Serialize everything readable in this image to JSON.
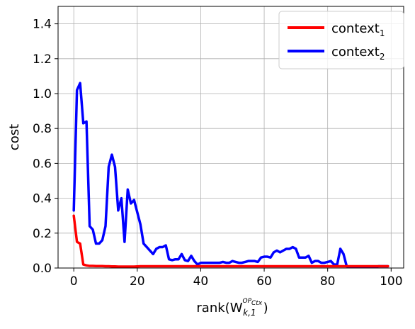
{
  "chart_data": {
    "type": "line",
    "title": "",
    "xlabel": {
      "base": "rank(W",
      "sup_main": "OP",
      "sup_sub": "Ctx",
      "sub": "k,1",
      "close": ")"
    },
    "ylabel": "cost",
    "xlim": [
      -4.95,
      103.95
    ],
    "ylim": [
      0,
      1.5
    ],
    "x_ticks": [
      0,
      20,
      40,
      60,
      80,
      100
    ],
    "x_tick_labels": [
      "0",
      "20",
      "40",
      "60",
      "80",
      "100"
    ],
    "y_ticks": [
      0,
      0.2,
      0.4,
      0.6,
      0.8,
      1.0,
      1.2,
      1.4
    ],
    "y_tick_labels": [
      "0.0",
      "0.2",
      "0.4",
      "0.6",
      "0.8",
      "1.0",
      "1.2",
      "1.4"
    ],
    "grid": true,
    "legend_position": "top-right",
    "series": [
      {
        "name": "context",
        "name_sub": "1",
        "color": "#ff0000",
        "x": [
          0,
          1,
          2,
          3,
          4,
          5,
          6,
          7,
          8,
          9,
          10,
          11,
          12,
          13,
          14,
          15,
          16,
          17,
          18,
          19,
          20,
          21,
          22,
          23,
          24,
          25,
          26,
          27,
          28,
          29,
          30,
          31,
          32,
          33,
          34,
          35,
          36,
          37,
          38,
          39,
          40,
          41,
          42,
          43,
          44,
          45,
          46,
          47,
          48,
          49,
          50,
          51,
          52,
          53,
          54,
          55,
          56,
          57,
          58,
          59,
          60,
          61,
          62,
          63,
          64,
          65,
          66,
          67,
          68,
          69,
          70,
          71,
          72,
          73,
          74,
          75,
          76,
          77,
          78,
          79,
          80,
          81,
          82,
          83,
          84,
          85,
          86,
          87,
          88,
          89,
          90,
          91,
          92,
          93,
          94,
          95,
          96,
          97,
          98,
          99
        ],
        "values": [
          0.3,
          0.15,
          0.14,
          0.02,
          0.015,
          0.012,
          0.012,
          0.011,
          0.011,
          0.011,
          0.01,
          0.01,
          0.009,
          0.009,
          0.008,
          0.008,
          0.008,
          0.008,
          0.008,
          0.008,
          0.009,
          0.01,
          0.01,
          0.01,
          0.01,
          0.01,
          0.01,
          0.01,
          0.01,
          0.01,
          0.01,
          0.01,
          0.01,
          0.01,
          0.01,
          0.01,
          0.01,
          0.01,
          0.01,
          0.01,
          0.01,
          0.01,
          0.01,
          0.01,
          0.01,
          0.01,
          0.01,
          0.01,
          0.01,
          0.01,
          0.01,
          0.01,
          0.01,
          0.01,
          0.01,
          0.01,
          0.01,
          0.01,
          0.01,
          0.01,
          0.01,
          0.01,
          0.01,
          0.01,
          0.01,
          0.01,
          0.01,
          0.01,
          0.01,
          0.01,
          0.01,
          0.01,
          0.01,
          0.01,
          0.01,
          0.01,
          0.01,
          0.01,
          0.01,
          0.01,
          0.01,
          0.01,
          0.01,
          0.01,
          0.01,
          0.01,
          0.01,
          0.01,
          0.01,
          0.01,
          0.01,
          0.01,
          0.01,
          0.01,
          0.01,
          0.01,
          0.01,
          0.01,
          0.01,
          0.01
        ]
      },
      {
        "name": "context",
        "name_sub": "2",
        "color": "#0000ff",
        "x": [
          0,
          1,
          2,
          3,
          4,
          5,
          6,
          7,
          8,
          9,
          10,
          11,
          12,
          13,
          14,
          15,
          16,
          17,
          18,
          19,
          20,
          21,
          22,
          23,
          24,
          25,
          26,
          27,
          28,
          29,
          30,
          31,
          32,
          33,
          34,
          35,
          36,
          37,
          38,
          39,
          40,
          41,
          42,
          43,
          44,
          45,
          46,
          47,
          48,
          49,
          50,
          51,
          52,
          53,
          54,
          55,
          56,
          57,
          58,
          59,
          60,
          61,
          62,
          63,
          64,
          65,
          66,
          67,
          68,
          69,
          70,
          71,
          72,
          73,
          74,
          75,
          76,
          77,
          78,
          79,
          80,
          81,
          82,
          83,
          84,
          85,
          86,
          87,
          88,
          89,
          90,
          91,
          92,
          93,
          94,
          95,
          96,
          97,
          98,
          99
        ],
        "values": [
          0.33,
          1.02,
          1.06,
          0.83,
          0.84,
          0.24,
          0.22,
          0.14,
          0.14,
          0.16,
          0.24,
          0.58,
          0.65,
          0.58,
          0.33,
          0.4,
          0.15,
          0.45,
          0.37,
          0.39,
          0.32,
          0.25,
          0.14,
          0.12,
          0.1,
          0.08,
          0.11,
          0.12,
          0.12,
          0.13,
          0.05,
          0.045,
          0.05,
          0.05,
          0.08,
          0.045,
          0.04,
          0.07,
          0.04,
          0.02,
          0.03,
          0.03,
          0.03,
          0.03,
          0.03,
          0.03,
          0.03,
          0.035,
          0.03,
          0.03,
          0.04,
          0.035,
          0.03,
          0.03,
          0.035,
          0.04,
          0.04,
          0.04,
          0.035,
          0.06,
          0.065,
          0.065,
          0.06,
          0.09,
          0.1,
          0.09,
          0.1,
          0.11,
          0.11,
          0.12,
          0.11,
          0.06,
          0.06,
          0.06,
          0.07,
          0.03,
          0.04,
          0.04,
          0.03,
          0.03,
          0.035,
          0.04,
          0.02,
          0.02,
          0.11,
          0.08,
          0.01,
          0.005,
          0.005,
          0.005,
          0.005,
          0.005,
          0.005,
          0.005,
          0.005,
          0.005,
          0.01,
          0.01,
          0.01,
          0.01
        ]
      }
    ]
  }
}
